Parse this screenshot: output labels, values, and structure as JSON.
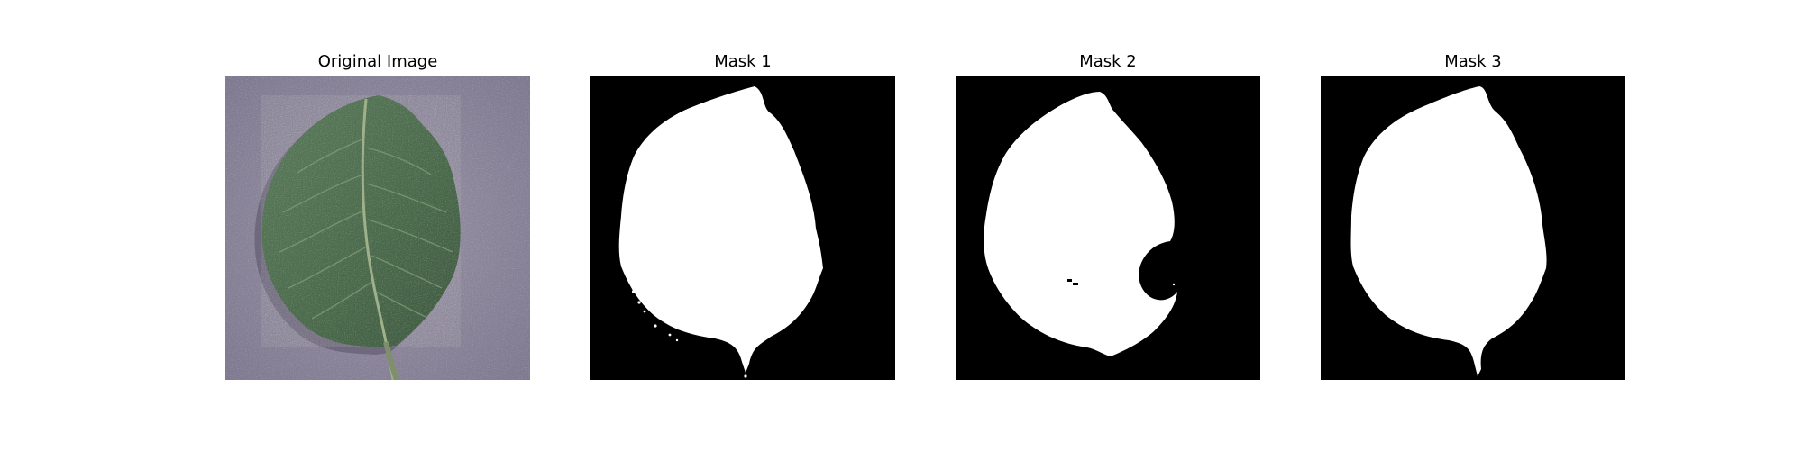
{
  "figure": {
    "panels": [
      {
        "title": "Original Image",
        "kind": "photo"
      },
      {
        "title": "Mask 1",
        "kind": "mask"
      },
      {
        "title": "Mask 2",
        "kind": "mask"
      },
      {
        "title": "Mask 3",
        "kind": "mask"
      }
    ]
  },
  "colors": {
    "background": "#ffffff",
    "mask_background": "#000000",
    "mask_foreground": "#ffffff",
    "leaf": "#4f6f4f",
    "leaf_vein": "#9fb08a",
    "surface": "#8f8a9c"
  }
}
